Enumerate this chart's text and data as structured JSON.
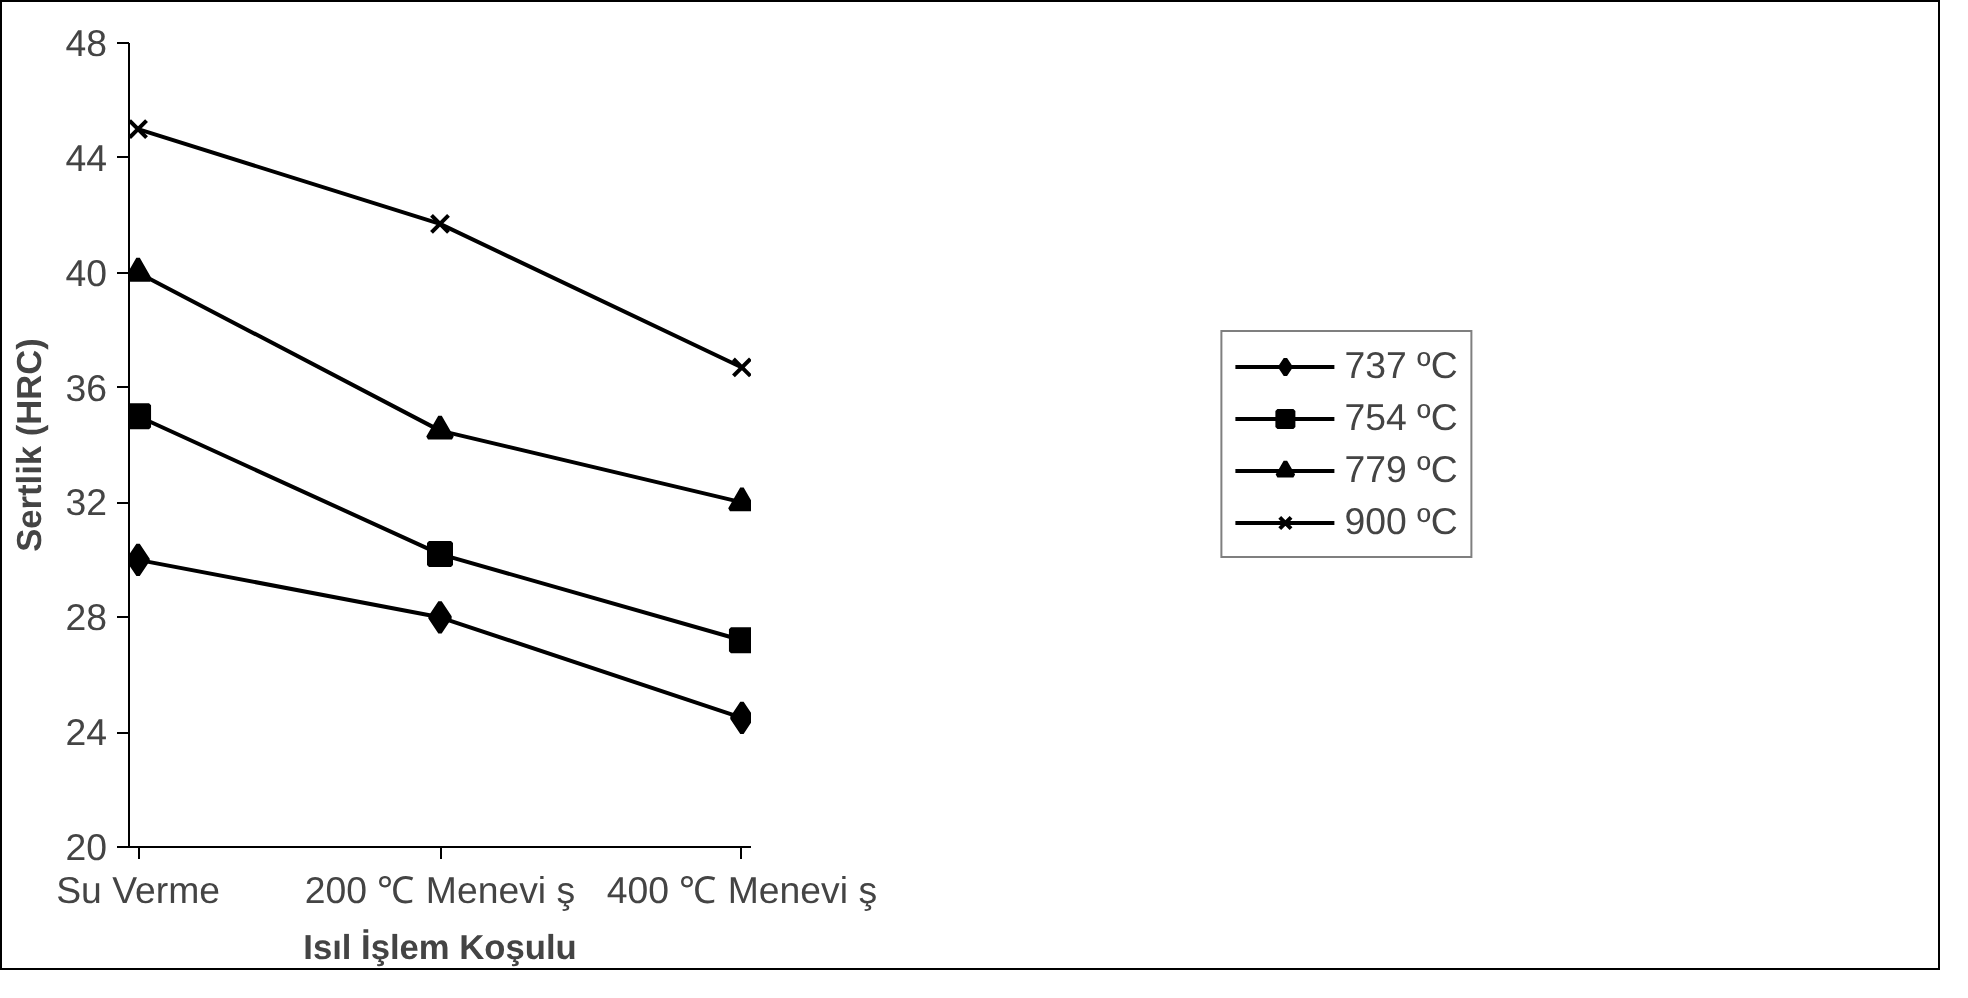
{
  "chart_data": {
    "type": "line",
    "xlabel": "Isıl İşlem Koşulu",
    "ylabel": "Sertlik (HRC)",
    "categories": [
      "Su Verme",
      "200 ℃ Menevi ş",
      "400 ℃ Menevi ş"
    ],
    "ylim": [
      20,
      48
    ],
    "yticks": [
      20,
      24,
      28,
      32,
      36,
      40,
      44,
      48
    ],
    "grid": false,
    "legend": "right",
    "line_style": "solid",
    "series": [
      {
        "name": "737 ºC",
        "color": "#000000",
        "marker": "diamond",
        "values": [
          30,
          28,
          24.5
        ]
      },
      {
        "name": "754 ºC",
        "color": "#000000",
        "marker": "square",
        "values": [
          35,
          30.2,
          27.2
        ]
      },
      {
        "name": "779 ºC",
        "color": "#000000",
        "marker": "triangle",
        "values": [
          40,
          34.5,
          32
        ]
      },
      {
        "name": "900 ºC",
        "color": "#000000",
        "marker": "cross",
        "values": [
          45,
          41.7,
          36.7
        ]
      }
    ]
  }
}
